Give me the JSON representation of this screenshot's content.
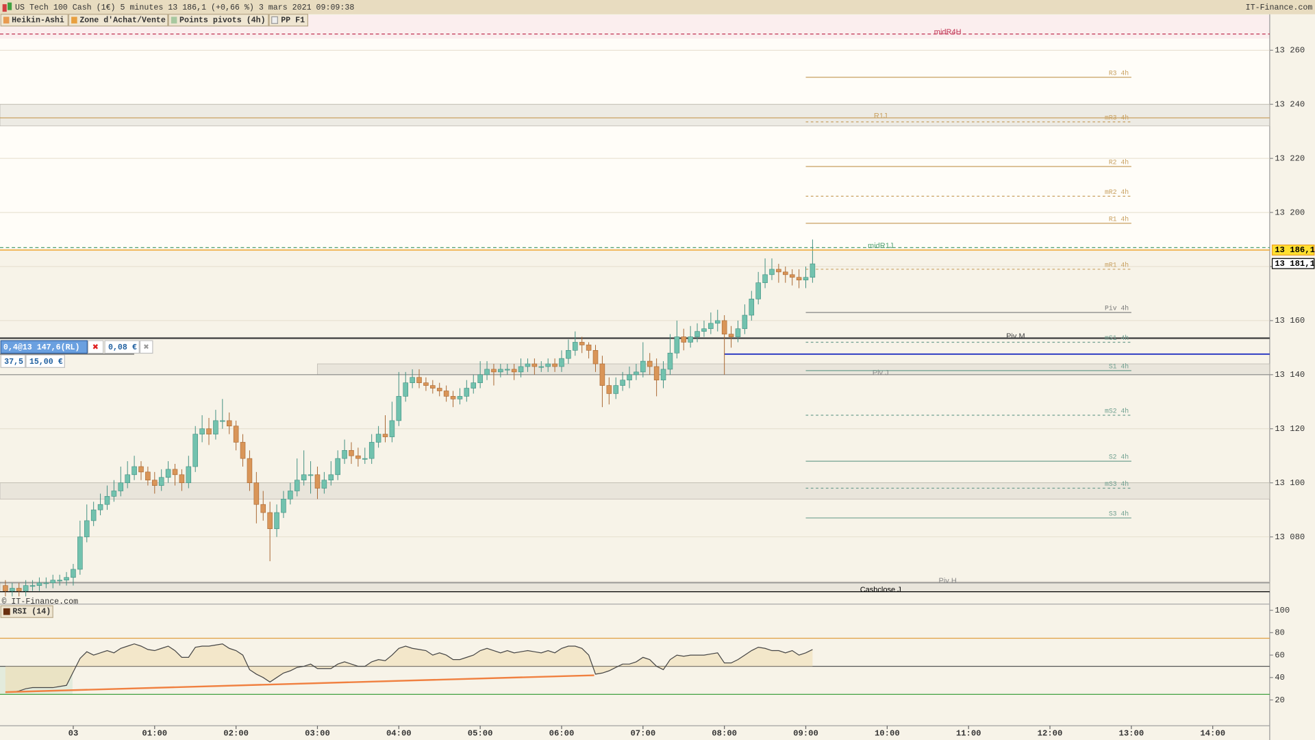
{
  "header": {
    "title": "US Tech 100 Cash (1€) 5 minutes 13 186,1 (+0,66 %) 3 mars 2021 09:09:38",
    "brand": "IT-Finance.com",
    "copyright": "© IT-Finance.com"
  },
  "tabs": [
    "Heikin-Ashi",
    "Zone d'Achat/Vente",
    "Points pivots (4h)",
    "PP F1"
  ],
  "order": {
    "label": "0,4@13 147,6(RL)",
    "price": 13147.6,
    "gain": "0,08 €",
    "points": "37,5",
    "amount": "15,00 €"
  },
  "chart_data": [
    {
      "type": "candlestick",
      "xlim": [
        -54,
        882
      ],
      "ylim": [
        13059.8,
        13273
      ],
      "yticks": [
        {
          "value": 13080,
          "label": "13 080"
        },
        {
          "value": 13100,
          "label": "13 100"
        },
        {
          "value": 13120,
          "label": "13 120"
        },
        {
          "value": 13140,
          "label": "13 140"
        },
        {
          "value": 13160,
          "label": "13 160"
        },
        {
          "value": 13180,
          "label": ""
        },
        {
          "value": 13200,
          "label": "13 200"
        },
        {
          "value": 13220,
          "label": "13 220"
        },
        {
          "value": 13240,
          "label": "13 240"
        },
        {
          "value": 13260,
          "label": "13 260"
        }
      ],
      "grid": true,
      "up_color": "#72c2ae",
      "down_color": "#d99558",
      "x": [
        -50,
        -45,
        -40,
        -35,
        -30,
        -25,
        -20,
        -15,
        -10,
        -5,
        0,
        5,
        10,
        15,
        20,
        25,
        30,
        35,
        40,
        45,
        50,
        55,
        60,
        65,
        70,
        75,
        80,
        85,
        90,
        95,
        100,
        105,
        110,
        115,
        120,
        125,
        130,
        135,
        140,
        145,
        150,
        155,
        160,
        165,
        170,
        175,
        180,
        185,
        190,
        195,
        200,
        205,
        210,
        215,
        220,
        225,
        230,
        235,
        240,
        245,
        250,
        255,
        260,
        265,
        270,
        275,
        280,
        285,
        290,
        295,
        300,
        305,
        310,
        315,
        320,
        325,
        330,
        335,
        340,
        345,
        350,
        355,
        360,
        365,
        370,
        375,
        380,
        385,
        390,
        395,
        400,
        405,
        410,
        415,
        420,
        425,
        430,
        435,
        440,
        445,
        450,
        455,
        460,
        465,
        470,
        475,
        480,
        485,
        490,
        495,
        500,
        505,
        510,
        515,
        520,
        525,
        530,
        535,
        540,
        545
      ],
      "open": [
        13062,
        13060,
        13061,
        13060,
        13062,
        13062,
        13063,
        13063,
        13064,
        13064,
        13065,
        13068,
        13080,
        13086,
        13090,
        13092,
        13095,
        13097,
        13100,
        13103,
        13106,
        13104,
        13101,
        13099,
        13102,
        13105,
        13103,
        13100,
        13106,
        13118,
        13120,
        13118,
        13123,
        13123,
        13121,
        13115,
        13109,
        13100,
        13092,
        13089,
        13083,
        13089,
        13094,
        13097,
        13101,
        13103,
        13103,
        13098,
        13101,
        13103,
        13109,
        13112,
        13110,
        13109,
        13109,
        13115,
        13118,
        13117,
        13123,
        13132,
        13137,
        13139,
        13137,
        13136,
        13135,
        13134,
        13132,
        13131,
        13132,
        13135,
        13137,
        13140,
        13142,
        13141,
        13142,
        13142,
        13141,
        13143,
        13144,
        13143,
        13143,
        13144,
        13143,
        13146,
        13149,
        13152,
        13151,
        13149,
        13144,
        13136,
        13133,
        13136,
        13138,
        13140,
        13141,
        13145,
        13143,
        13138,
        13142,
        13148,
        13154,
        13152,
        13154,
        13156,
        13157,
        13159,
        13160,
        13155,
        13154,
        13157,
        13162,
        13168,
        13174,
        13177,
        13179,
        13178,
        13177,
        13176,
        13175,
        13176
      ],
      "high": [
        13064,
        13063,
        13063,
        13064,
        13064,
        13065,
        13065,
        13066,
        13066,
        13067,
        13070,
        13086,
        13092,
        13093,
        13096,
        13099,
        13101,
        13106,
        13108,
        13110,
        13108,
        13106,
        13104,
        13105,
        13108,
        13107,
        13105,
        13110,
        13121,
        13125,
        13124,
        13127,
        13131,
        13126,
        13123,
        13118,
        13112,
        13104,
        13097,
        13093,
        13092,
        13097,
        13100,
        13109,
        13112,
        13108,
        13106,
        13104,
        13108,
        13112,
        13116,
        13115,
        13113,
        13113,
        13118,
        13121,
        13125,
        13130,
        13141,
        13141,
        13142,
        13142,
        13139,
        13138,
        13137,
        13136,
        13134,
        13135,
        13138,
        13140,
        13145,
        13145,
        13144,
        13144,
        13144,
        13144,
        13146,
        13146,
        13146,
        13145,
        13146,
        13146,
        13149,
        13153,
        13156,
        13154,
        13152,
        13151,
        13147,
        13139,
        13139,
        13141,
        13143,
        13144,
        13152,
        13148,
        13146,
        13145,
        13155,
        13160,
        13157,
        13158,
        13159,
        13160,
        13163,
        13164,
        13162,
        13158,
        13160,
        13166,
        13171,
        13178,
        13183,
        13183,
        13181,
        13180,
        13179,
        13179,
        13180,
        13190
      ],
      "low": [
        13058,
        13058,
        13058,
        13058,
        13060,
        13060,
        13061,
        13061,
        13062,
        13062,
        13062,
        13066,
        13078,
        13084,
        13088,
        13090,
        13093,
        13095,
        13098,
        13101,
        13101,
        13099,
        13096,
        13097,
        13100,
        13099,
        13097,
        13098,
        13104,
        13115,
        13114,
        13116,
        13120,
        13118,
        13112,
        13106,
        13097,
        13085,
        13086,
        13071,
        13080,
        13087,
        13092,
        13095,
        13099,
        13096,
        13094,
        13096,
        13099,
        13101,
        13107,
        13107,
        13106,
        13107,
        13107,
        13113,
        13115,
        13115,
        13121,
        13130,
        13135,
        13135,
        13134,
        13133,
        13132,
        13130,
        13128,
        13129,
        13130,
        13133,
        13135,
        13138,
        13136,
        13139,
        13140,
        13138,
        13139,
        13141,
        13140,
        13141,
        13141,
        13141,
        13141,
        13144,
        13147,
        13148,
        13146,
        13141,
        13128,
        13129,
        13131,
        13134,
        13135,
        13138,
        13139,
        13140,
        13132,
        13135,
        13140,
        13146,
        13149,
        13150,
        13152,
        13154,
        13155,
        13156,
        13140,
        13150,
        13152,
        13155,
        13160,
        13166,
        13172,
        13175,
        13174,
        13174,
        13173,
        13172,
        13172,
        13174
      ],
      "close": [
        13060,
        13061,
        13060,
        13062,
        13062,
        13063,
        13063,
        13064,
        13064,
        13065,
        13068,
        13080,
        13086,
        13090,
        13092,
        13095,
        13097,
        13100,
        13103,
        13106,
        13104,
        13101,
        13099,
        13102,
        13105,
        13103,
        13100,
        13106,
        13118,
        13120,
        13118,
        13123,
        13123,
        13121,
        13115,
        13109,
        13100,
        13092,
        13089,
        13083,
        13089,
        13094,
        13097,
        13101,
        13103,
        13103,
        13098,
        13101,
        13103,
        13109,
        13112,
        13110,
        13109,
        13109,
        13115,
        13118,
        13117,
        13123,
        13132,
        13137,
        13139,
        13137,
        13136,
        13135,
        13134,
        13132,
        13131,
        13132,
        13135,
        13137,
        13140,
        13142,
        13141,
        13142,
        13142,
        13141,
        13143,
        13144,
        13143,
        13143,
        13144,
        13143,
        13146,
        13149,
        13152,
        13151,
        13149,
        13144,
        13136,
        13133,
        13136,
        13138,
        13140,
        13141,
        13145,
        13143,
        13138,
        13142,
        13148,
        13154,
        13152,
        13154,
        13156,
        13157,
        13159,
        13160,
        13155,
        13154,
        13157,
        13162,
        13168,
        13174,
        13177,
        13179,
        13178,
        13177,
        13176,
        13175,
        13176,
        13181
      ],
      "zones": [
        {
          "from": 13232,
          "to": 13240
        },
        {
          "from": 13140,
          "to": 13144,
          "start": 180
        },
        {
          "from": 13094,
          "to": 13100
        },
        {
          "from": 13059.8,
          "to": 13063.4
        }
      ],
      "levels_4h": {
        "start": 540,
        "end": 780,
        "items": [
          {
            "label": "R3 4h",
            "value": 13250,
            "color": "#c8a060",
            "dashed": false
          },
          {
            "label": "mR3 4h",
            "value": 13233.5,
            "color": "#c8a060",
            "dashed": true
          },
          {
            "label": "R2 4h",
            "value": 13217,
            "color": "#c8a060",
            "dashed": false
          },
          {
            "label": "mR2 4h",
            "value": 13206,
            "color": "#c8a060",
            "dashed": true
          },
          {
            "label": "R1 4h",
            "value": 13196,
            "color": "#c8a060",
            "dashed": false
          },
          {
            "label": "mR1 4h",
            "value": 13179,
            "color": "#c8a060",
            "dashed": true
          },
          {
            "label": "Piv 4h",
            "value": 13163,
            "color": "#777777",
            "dashed": false
          },
          {
            "label": "mS1 4h",
            "value": 13152,
            "color": "#70a090",
            "dashed": true
          },
          {
            "label": "S1 4h",
            "value": 13141.5,
            "color": "#70a090",
            "dashed": false
          },
          {
            "label": "mS2 4h",
            "value": 13125,
            "color": "#70a090",
            "dashed": true
          },
          {
            "label": "S2 4h",
            "value": 13108,
            "color": "#70a090",
            "dashed": false
          },
          {
            "label": "mS3 4h",
            "value": 13098,
            "color": "#70a090",
            "dashed": true
          },
          {
            "label": "S3 4h",
            "value": 13087,
            "color": "#70a090",
            "dashed": false
          }
        ]
      },
      "levels": [
        {
          "label": "midR4H",
          "value": 13266,
          "color": "#c03050",
          "dashed": true
        },
        {
          "label": "R1J",
          "value": 13235,
          "color": "#c8a060",
          "dashed": false
        },
        {
          "label": "midR1J",
          "value": 13187,
          "color": "#50a070",
          "dashed": true
        },
        {
          "label": "Piv M",
          "value": 13153.5,
          "color": "#444444",
          "dashed": false
        },
        {
          "label": "Piv J",
          "value": 13140,
          "color": "#888888",
          "dashed": false
        },
        {
          "label": "Piv H",
          "value": 13063,
          "color": "#888888",
          "dashed": false
        },
        {
          "label": "Cashclose J",
          "value": 13059.7,
          "color": "#000000",
          "dashed": false
        }
      ],
      "price_tags": [
        {
          "value": 13186.1,
          "label": "13 186,1",
          "color": "#f0a020"
        },
        {
          "value": 13181.1,
          "label": "13 181,1",
          "color": "#000000"
        }
      ]
    },
    {
      "type": "line",
      "title": "RSI (14)",
      "ylim": [
        -3,
        104
      ],
      "yticks": [
        20,
        40,
        60,
        80,
        100
      ],
      "color": "#444444",
      "values": [
        27,
        27,
        28,
        30,
        31,
        31,
        31,
        31,
        32,
        33,
        45,
        57,
        63,
        60,
        62,
        64,
        62,
        66,
        68,
        70,
        68,
        65,
        64,
        66,
        68,
        64,
        58,
        58,
        67,
        68,
        68,
        69,
        70,
        66,
        64,
        60,
        47,
        43,
        40,
        36,
        40,
        44,
        46,
        49,
        50,
        52,
        48,
        48,
        48,
        52,
        54,
        52,
        50,
        50,
        54,
        56,
        55,
        60,
        66,
        68,
        66,
        65,
        64,
        60,
        62,
        60,
        56,
        56,
        58,
        60,
        64,
        66,
        64,
        62,
        64,
        62,
        63,
        64,
        63,
        62,
        64,
        62,
        66,
        68,
        68,
        66,
        60,
        43,
        44,
        46,
        49,
        52,
        52,
        54,
        58,
        56,
        50,
        47,
        56,
        60,
        59,
        60,
        60,
        60,
        61,
        62,
        53,
        53,
        56,
        60,
        64,
        67,
        66,
        64,
        64,
        62,
        64,
        60,
        62,
        65
      ],
      "levels": [
        {
          "value": 75,
          "color": "#e0a040"
        },
        {
          "value": 50,
          "color": "#555555"
        },
        {
          "value": 25,
          "color": "#40a040"
        }
      ],
      "trendline": {
        "x": [
          -50,
          384
        ],
        "values": [
          27,
          42
        ],
        "color": "#f08040"
      },
      "xticks": [
        {
          "value": 0,
          "label": "03"
        },
        {
          "value": 60,
          "label": "01:00"
        },
        {
          "value": 120,
          "label": "02:00"
        },
        {
          "value": 180,
          "label": "03:00"
        },
        {
          "value": 240,
          "label": "04:00"
        },
        {
          "value": 300,
          "label": "05:00"
        },
        {
          "value": 360,
          "label": "06:00"
        },
        {
          "value": 420,
          "label": "07:00"
        },
        {
          "value": 480,
          "label": "08:00"
        },
        {
          "value": 540,
          "label": "09:00"
        },
        {
          "value": 600,
          "label": "10:00"
        },
        {
          "value": 660,
          "label": "11:00"
        },
        {
          "value": 720,
          "label": "12:00"
        },
        {
          "value": 780,
          "label": "13:00"
        },
        {
          "value": 840,
          "label": "14:00"
        }
      ]
    }
  ]
}
